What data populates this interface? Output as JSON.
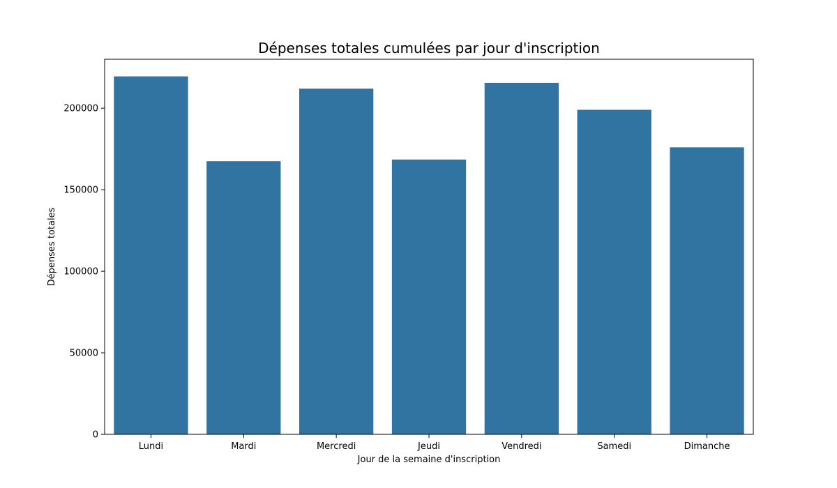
{
  "chart_data": {
    "type": "bar",
    "title": "Dépenses totales cumulées par jour d'inscription",
    "xlabel": "Jour de la semaine d'inscription",
    "ylabel": "Dépenses totales",
    "categories": [
      "Lundi",
      "Mardi",
      "Mercredi",
      "Jeudi",
      "Vendredi",
      "Samedi",
      "Dimanche"
    ],
    "values": [
      219500,
      167500,
      212000,
      168500,
      215500,
      199000,
      176000
    ],
    "ylim": [
      0,
      230000
    ],
    "yticks": [
      0,
      50000,
      100000,
      150000,
      200000
    ],
    "ytick_labels": [
      "0",
      "50000",
      "100000",
      "150000",
      "200000"
    ],
    "bar_color": "#3274a1",
    "grid": false,
    "legend": "none"
  }
}
